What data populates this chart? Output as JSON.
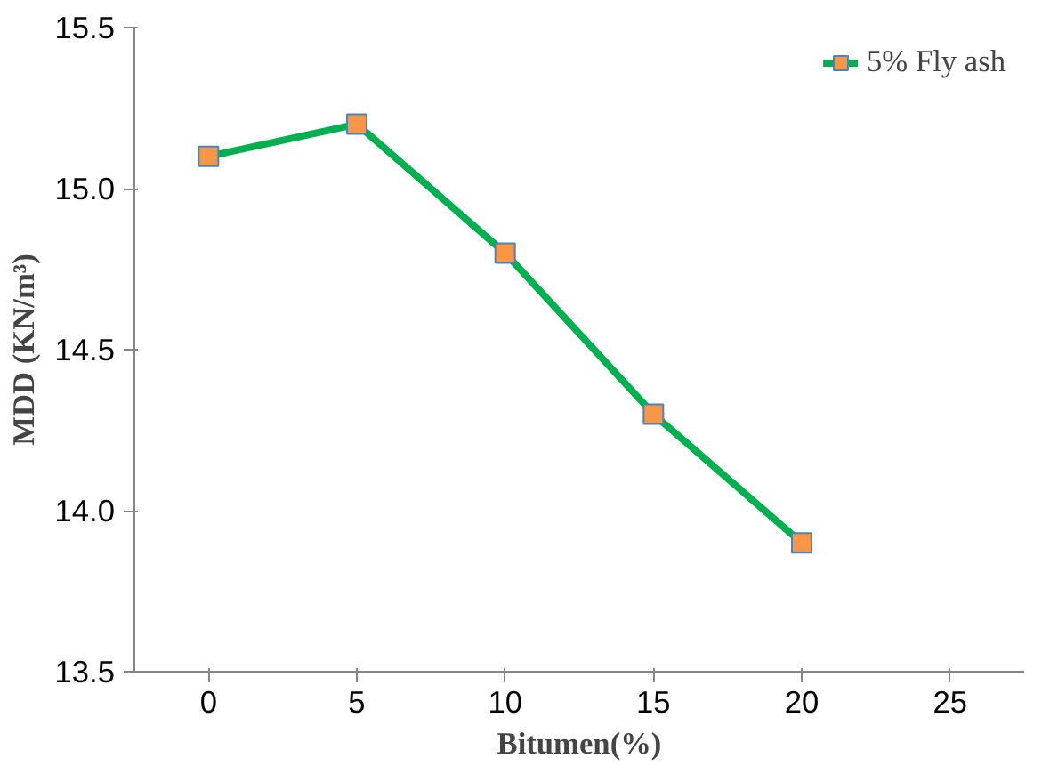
{
  "chart_data": {
    "type": "line",
    "xlabel": "Bitumen(%)",
    "ylabel": "MDD (KN/m³)",
    "x": [
      0,
      5,
      10,
      15,
      20
    ],
    "series": [
      {
        "name": "5% Fly ash",
        "color": "#00b050",
        "values": [
          15.1,
          15.2,
          14.8,
          14.3,
          13.9
        ]
      }
    ],
    "xlim": [
      -2.5,
      27.5
    ],
    "xticks": [
      0,
      5,
      10,
      15,
      20,
      25
    ],
    "ylim": [
      13.5,
      15.5
    ],
    "yticks": [
      {
        "value": 13.5,
        "label": "13.5"
      },
      {
        "value": 14.0,
        "label": "14.0"
      },
      {
        "value": 14.5,
        "label": "14.5"
      },
      {
        "value": 15.0,
        "label": "15.0"
      },
      {
        "value": 15.5,
        "label": "15.5"
      }
    ],
    "grid": false,
    "legend": "top right",
    "marker": "square",
    "line_style": "solid"
  }
}
